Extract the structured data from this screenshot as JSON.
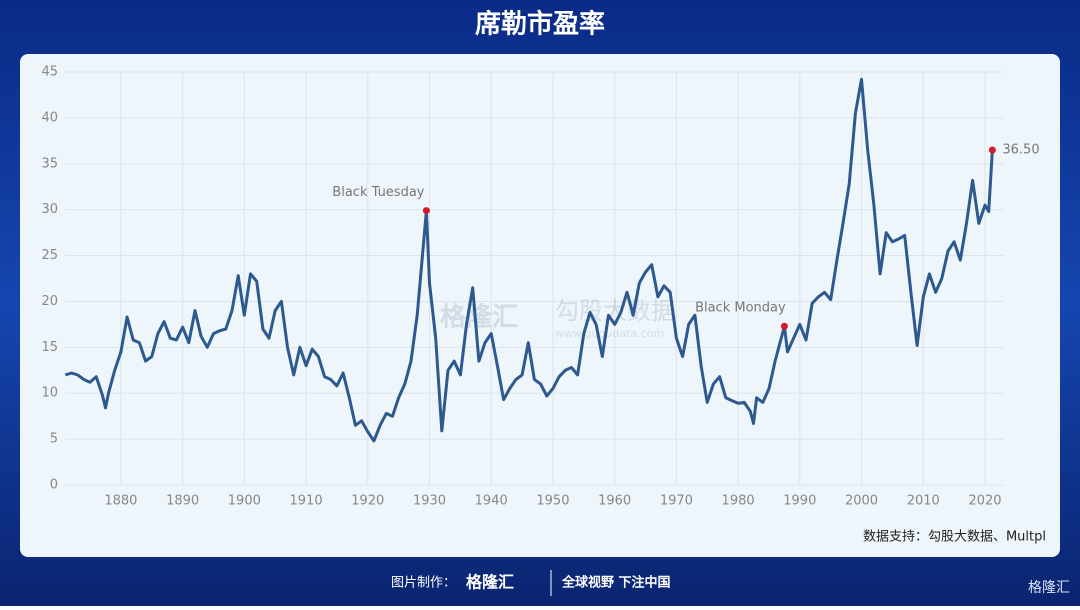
{
  "chart_data": {
    "type": "line",
    "title": "席勒市盈率",
    "x": [
      1871,
      1872,
      1873,
      1874,
      1875,
      1876,
      1877,
      1877.5,
      1878,
      1879,
      1880,
      1881,
      1882,
      1883,
      1884,
      1885,
      1886,
      1887,
      1888,
      1889,
      1890,
      1891,
      1892,
      1893,
      1894,
      1895,
      1896,
      1897,
      1898,
      1899,
      1900,
      1901,
      1902,
      1903,
      1904,
      1905,
      1906,
      1907,
      1908,
      1909,
      1910,
      1911,
      1912,
      1913,
      1914,
      1915,
      1916,
      1917,
      1918,
      1919,
      1920,
      1921,
      1922,
      1923,
      1924,
      1925,
      1926,
      1927,
      1928,
      1929.5,
      1930,
      1931,
      1932,
      1933,
      1934,
      1935,
      1936,
      1937,
      1938,
      1939,
      1940,
      1941,
      1942,
      1943,
      1944,
      1945,
      1946,
      1947,
      1948,
      1949,
      1950,
      1951,
      1952,
      1953,
      1954,
      1955,
      1956,
      1957,
      1958,
      1959,
      1960,
      1961,
      1962,
      1963,
      1964,
      1965,
      1966,
      1967,
      1968,
      1969,
      1970,
      1971,
      1972,
      1973,
      1974,
      1975,
      1976,
      1977,
      1978,
      1979,
      1980,
      1981,
      1982,
      1982.5,
      1983,
      1984,
      1985,
      1986,
      1987.5,
      1988,
      1989,
      1990,
      1991,
      1992,
      1993,
      1994,
      1995,
      1996,
      1997,
      1998,
      1999,
      2000,
      2001,
      2002,
      2003,
      2004,
      2005,
      2006,
      2007,
      2008,
      2009,
      2010,
      2011,
      2012,
      2013,
      2014,
      2015,
      2016,
      2017,
      2018,
      2019,
      2020,
      2020.6,
      2021.2
    ],
    "values": [
      12.0,
      12.2,
      12.0,
      11.5,
      11.2,
      11.8,
      9.8,
      8.4,
      10.0,
      12.5,
      14.5,
      18.3,
      15.8,
      15.5,
      13.5,
      14.0,
      16.5,
      17.8,
      16.0,
      15.8,
      17.2,
      15.5,
      19.0,
      16.2,
      15.0,
      16.5,
      16.8,
      17.0,
      19.0,
      22.8,
      18.5,
      23.0,
      22.2,
      17.0,
      16.0,
      19.0,
      20.0,
      15.0,
      12.0,
      15.0,
      13.0,
      14.8,
      14.0,
      11.8,
      11.5,
      10.8,
      12.2,
      9.5,
      6.5,
      7.0,
      5.8,
      4.8,
      6.5,
      7.8,
      7.5,
      9.5,
      11.0,
      13.5,
      18.5,
      29.9,
      22.0,
      16.0,
      5.9,
      12.5,
      13.5,
      12.0,
      17.5,
      21.5,
      13.5,
      15.5,
      16.5,
      13.0,
      9.3,
      10.5,
      11.5,
      12.0,
      15.5,
      11.5,
      11.0,
      9.7,
      10.5,
      11.8,
      12.5,
      12.8,
      12.0,
      16.5,
      18.8,
      17.5,
      14.0,
      18.5,
      17.5,
      18.8,
      21.0,
      18.5,
      22.0,
      23.2,
      24.0,
      20.5,
      21.7,
      21.0,
      16.0,
      14.0,
      17.5,
      18.5,
      13.0,
      9.0,
      11.0,
      11.8,
      9.5,
      9.2,
      8.9,
      9.0,
      8.0,
      6.7,
      9.5,
      9.0,
      10.5,
      13.5,
      17.3,
      14.5,
      16.0,
      17.5,
      15.8,
      19.8,
      20.5,
      21.0,
      20.2,
      24.5,
      28.5,
      32.8,
      40.5,
      44.2,
      36.5,
      30.5,
      23.0,
      27.5,
      26.5,
      26.8,
      27.2,
      21.0,
      15.2,
      20.5,
      23.0,
      21.0,
      22.5,
      25.5,
      26.5,
      24.5,
      28.5,
      33.2,
      28.5,
      30.5,
      29.8,
      36.5
    ],
    "color": "#2d5a8e",
    "xlim": [
      1869,
      2023
    ],
    "ylim": [
      0,
      45
    ],
    "xticks": [
      1880,
      1890,
      1900,
      1910,
      1920,
      1930,
      1940,
      1950,
      1960,
      1970,
      1980,
      1990,
      2000,
      2010,
      2020
    ],
    "yticks": [
      0,
      5,
      10,
      15,
      20,
      25,
      30,
      35,
      40,
      45
    ],
    "grid": true,
    "annotations": [
      {
        "label": "Black Tuesday",
        "x": 1929.5,
        "y": 29.9
      },
      {
        "label": "Black Monday",
        "x": 1987.5,
        "y": 17.3
      },
      {
        "label": "36.50",
        "x": 2021.2,
        "y": 36.5
      }
    ],
    "marker_color": "#d9182b",
    "source": "数据支持：勾股大数据、Multpl",
    "watermark": [
      "格隆汇",
      "勾股大数据",
      "www.gugudata.com"
    ]
  },
  "footer": {
    "maker_label": "图片制作：",
    "brand": "格隆汇",
    "slogan": "全球视野 下注中国",
    "corner_brand": "格隆汇"
  }
}
